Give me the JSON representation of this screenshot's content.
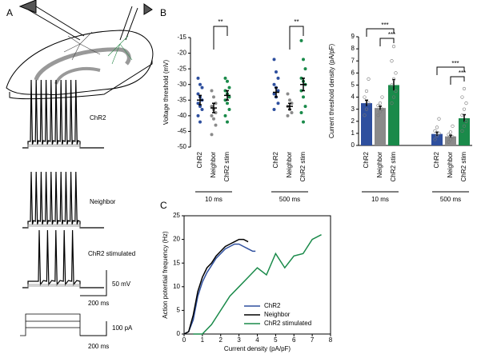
{
  "panel_a": {
    "label": "A",
    "traces": [
      "ChR2",
      "Neighbor",
      "ChR2 stimulated"
    ],
    "scale_v": "50 mV",
    "scale_t": "200 ms",
    "scale_i": "100 pA",
    "scale_t2": "200 ms"
  },
  "panel_b_label": "B",
  "panel_c_label": "C",
  "chart_data": [
    {
      "type": "dot",
      "ylabel": "Voltage threshold (mV)",
      "categories": [
        "ChR2",
        "Neighbor",
        "ChR2 stim",
        "ChR2",
        "Neighbor",
        "ChR2 stim"
      ],
      "groups": [
        "10 ms",
        "500 ms"
      ],
      "colors": [
        "#2e4f9e",
        "#8a8a8a",
        "#1a8a4a",
        "#2e4f9e",
        "#8a8a8a",
        "#1a8a4a"
      ],
      "values": [
        -35,
        -37.5,
        -33.5,
        -32.5,
        -37,
        -30
      ],
      "error": [
        1.5,
        1.5,
        1.5,
        1.5,
        1,
        2
      ],
      "points": [
        [
          -28,
          -30,
          -31,
          -33,
          -34,
          -35,
          -36,
          -37,
          -38,
          -40,
          -42
        ],
        [
          -32,
          -34,
          -36,
          -37,
          -38,
          -39,
          -40,
          -41,
          -43,
          -46
        ],
        [
          -28,
          -29,
          -31,
          -32,
          -33,
          -34,
          -35,
          -36,
          -38,
          -40,
          -42
        ],
        [
          -22,
          -26,
          -28,
          -30,
          -31,
          -32,
          -33,
          -34,
          -36,
          -38
        ],
        [
          -33,
          -35,
          -36,
          -37,
          -38,
          -39,
          -40
        ],
        [
          -16,
          -22,
          -25,
          -28,
          -29,
          -30,
          -32,
          -34,
          -37,
          -39,
          -42
        ]
      ],
      "annotations": [
        "**",
        "**"
      ],
      "ylim": [
        -50,
        -15
      ],
      "yticks": [
        -50,
        -45,
        -40,
        -35,
        -30,
        -25,
        -20,
        -15
      ]
    },
    {
      "type": "bar",
      "ylabel": "Current threshold density (pA/pF)",
      "categories": [
        "ChR2",
        "Neighbor",
        "ChR2 stim",
        "ChR2",
        "Neighbor",
        "ChR2 stim"
      ],
      "groups": [
        "10 ms",
        "500 ms"
      ],
      "colors": [
        "#2e4f9e",
        "#8a8a8a",
        "#1a8a4a",
        "#2e4f9e",
        "#8a8a8a",
        "#1a8a4a"
      ],
      "values": [
        3.5,
        3.1,
        5.0,
        0.95,
        0.75,
        2.25
      ],
      "error": [
        0.25,
        0.15,
        0.45,
        0.15,
        0.1,
        0.3
      ],
      "points": [
        [
          2.5,
          3,
          3.5,
          4,
          4.5,
          5.5
        ],
        [
          2.5,
          2.8,
          3,
          3.3,
          3.5,
          4
        ],
        [
          3.5,
          4,
          4.5,
          5,
          5.5,
          6,
          7,
          8.2
        ],
        [
          0.5,
          0.8,
          1,
          1.2,
          1.5,
          2.2
        ],
        [
          0.3,
          0.5,
          0.7,
          0.9,
          1.1,
          1.6
        ],
        [
          1.2,
          1.6,
          2,
          2.5,
          3,
          3.5,
          4,
          4.7
        ]
      ],
      "annotations": [
        "***",
        "***",
        "***",
        "***"
      ],
      "ylim": [
        0,
        9
      ],
      "yticks": [
        0,
        1,
        2,
        3,
        4,
        5,
        6,
        7,
        8,
        9
      ]
    },
    {
      "type": "line",
      "xlabel": "Current density (pA/pF)",
      "ylabel": "Action potential frequency (Hz)",
      "series": [
        {
          "name": "ChR2",
          "color": "#2e4f9e",
          "x": [
            0,
            0.25,
            0.5,
            0.75,
            1,
            1.25,
            1.5,
            1.75,
            2,
            2.25,
            2.5,
            2.75,
            3,
            3.25,
            3.5,
            3.75,
            3.9
          ],
          "values": [
            0,
            0.5,
            3,
            8,
            11,
            13,
            14.5,
            16,
            17,
            18,
            18.5,
            19,
            19,
            18.5,
            18,
            17.5,
            17.5
          ]
        },
        {
          "name": "Neighbor",
          "color": "#000000",
          "x": [
            0,
            0.25,
            0.5,
            0.75,
            1,
            1.25,
            1.5,
            1.75,
            2,
            2.25,
            2.5,
            2.75,
            3,
            3.25,
            3.5
          ],
          "values": [
            0,
            0.5,
            4,
            9,
            12,
            14,
            15,
            16.5,
            17.5,
            18.5,
            19,
            19.5,
            20,
            20,
            19.5
          ]
        },
        {
          "name": "ChR2 stimulated",
          "color": "#1a8a4a",
          "x": [
            0.5,
            1,
            1.5,
            2,
            2.5,
            3,
            3.5,
            4,
            4.5,
            5,
            5.5,
            6,
            6.5,
            7,
            7.5
          ],
          "values": [
            0,
            0,
            2,
            5,
            8,
            10,
            12,
            14,
            12.5,
            17,
            14,
            16.5,
            17,
            20,
            21
          ]
        }
      ],
      "xlim": [
        0,
        8
      ],
      "xticks": [
        0,
        1,
        2,
        3,
        4,
        5,
        6,
        7,
        8
      ],
      "ylim": [
        0,
        25
      ],
      "yticks": [
        0,
        5,
        10,
        15,
        20,
        25
      ]
    }
  ]
}
